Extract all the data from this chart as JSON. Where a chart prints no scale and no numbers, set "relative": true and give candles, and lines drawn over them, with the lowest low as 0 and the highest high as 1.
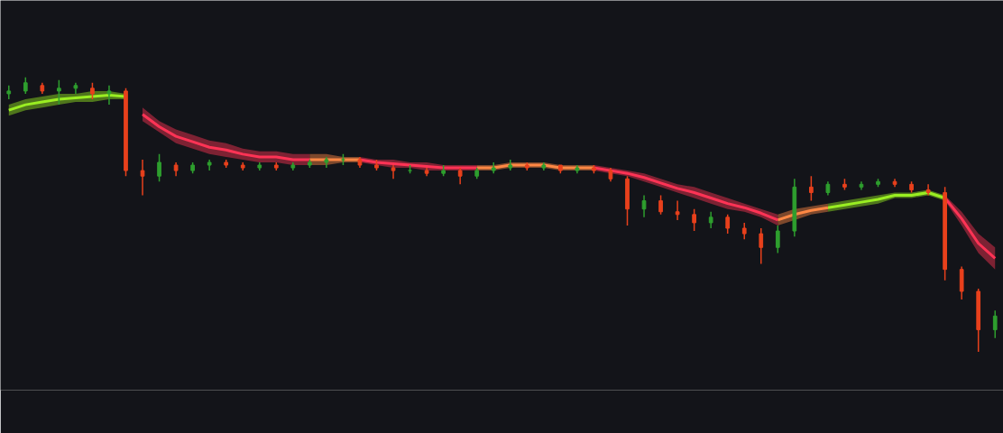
{
  "chart_data": {
    "type": "candlestick",
    "relative": true,
    "categories": [
      null,
      null,
      null,
      null,
      null,
      null,
      null,
      null,
      null,
      null,
      null,
      null,
      null,
      null,
      null,
      null,
      null,
      null,
      null,
      null,
      null,
      null,
      null,
      null,
      null,
      null,
      null,
      null,
      null,
      null,
      null,
      null,
      null,
      null,
      null,
      null,
      null,
      null,
      null,
      null,
      null,
      null,
      null,
      null,
      null,
      null,
      null,
      null,
      null,
      null,
      null,
      null,
      null,
      null,
      null,
      null,
      null,
      null,
      null,
      null
    ],
    "ohlc": [
      [
        0.94,
        0.97,
        0.92,
        0.95
      ],
      [
        0.95,
        1.0,
        0.94,
        0.98
      ],
      [
        0.97,
        0.98,
        0.94,
        0.95
      ],
      [
        0.95,
        0.99,
        0.9,
        0.96
      ],
      [
        0.96,
        0.98,
        0.94,
        0.97
      ],
      [
        0.96,
        0.98,
        0.92,
        0.94
      ],
      [
        0.94,
        0.97,
        0.9,
        0.95
      ],
      [
        0.95,
        0.96,
        0.64,
        0.66
      ],
      [
        0.66,
        0.7,
        0.57,
        0.64
      ],
      [
        0.64,
        0.72,
        0.62,
        0.69
      ],
      [
        0.68,
        0.69,
        0.64,
        0.66
      ],
      [
        0.66,
        0.69,
        0.65,
        0.68
      ],
      [
        0.68,
        0.7,
        0.66,
        0.69
      ],
      [
        0.69,
        0.7,
        0.67,
        0.68
      ],
      [
        0.68,
        0.69,
        0.66,
        0.67
      ],
      [
        0.67,
        0.69,
        0.66,
        0.68
      ],
      [
        0.68,
        0.69,
        0.66,
        0.67
      ],
      [
        0.67,
        0.69,
        0.66,
        0.68
      ],
      [
        0.68,
        0.7,
        0.67,
        0.69
      ],
      [
        0.69,
        0.71,
        0.67,
        0.7
      ],
      [
        0.7,
        0.72,
        0.68,
        0.7
      ],
      [
        0.7,
        0.71,
        0.67,
        0.68
      ],
      [
        0.68,
        0.7,
        0.66,
        0.67
      ],
      [
        0.67,
        0.68,
        0.63,
        0.66
      ],
      [
        0.66,
        0.68,
        0.65,
        0.66
      ],
      [
        0.66,
        0.67,
        0.64,
        0.65
      ],
      [
        0.65,
        0.68,
        0.64,
        0.66
      ],
      [
        0.66,
        0.67,
        0.61,
        0.64
      ],
      [
        0.64,
        0.67,
        0.63,
        0.66
      ],
      [
        0.66,
        0.69,
        0.65,
        0.67
      ],
      [
        0.67,
        0.7,
        0.66,
        0.68
      ],
      [
        0.68,
        0.69,
        0.66,
        0.67
      ],
      [
        0.67,
        0.69,
        0.66,
        0.68
      ],
      [
        0.68,
        0.68,
        0.65,
        0.66
      ],
      [
        0.66,
        0.68,
        0.65,
        0.67
      ],
      [
        0.67,
        0.68,
        0.65,
        0.66
      ],
      [
        0.66,
        0.67,
        0.62,
        0.63
      ],
      [
        0.63,
        0.64,
        0.46,
        0.52
      ],
      [
        0.52,
        0.57,
        0.49,
        0.55
      ],
      [
        0.55,
        0.57,
        0.5,
        0.51
      ],
      [
        0.51,
        0.55,
        0.48,
        0.5
      ],
      [
        0.5,
        0.52,
        0.44,
        0.47
      ],
      [
        0.47,
        0.51,
        0.45,
        0.49
      ],
      [
        0.49,
        0.5,
        0.43,
        0.45
      ],
      [
        0.45,
        0.47,
        0.41,
        0.43
      ],
      [
        0.43,
        0.45,
        0.32,
        0.38
      ],
      [
        0.38,
        0.46,
        0.36,
        0.44
      ],
      [
        0.44,
        0.63,
        0.42,
        0.6
      ],
      [
        0.6,
        0.64,
        0.55,
        0.58
      ],
      [
        0.58,
        0.62,
        0.57,
        0.61
      ],
      [
        0.61,
        0.63,
        0.59,
        0.6
      ],
      [
        0.6,
        0.62,
        0.59,
        0.61
      ],
      [
        0.61,
        0.63,
        0.6,
        0.62
      ],
      [
        0.62,
        0.63,
        0.6,
        0.61
      ],
      [
        0.61,
        0.62,
        0.58,
        0.59
      ],
      [
        0.59,
        0.61,
        0.57,
        0.58
      ],
      [
        0.58,
        0.6,
        0.26,
        0.3
      ],
      [
        0.3,
        0.31,
        0.19,
        0.22
      ],
      [
        0.22,
        0.23,
        0.0,
        0.08
      ],
      [
        0.08,
        0.15,
        0.05,
        0.13
      ]
    ],
    "series": [
      {
        "type": "line",
        "color": "#9aee22",
        "values": [
          0.88,
          0.9,
          0.91,
          0.92,
          0.925,
          0.93,
          0.935,
          0.93,
          null,
          null,
          null,
          null,
          null,
          null,
          null,
          null,
          null,
          null,
          null,
          null,
          null,
          null,
          null,
          null,
          null,
          null,
          null,
          null,
          null,
          null,
          null,
          null,
          null,
          null,
          null,
          null,
          null,
          null,
          null,
          null,
          null,
          null,
          null,
          null,
          null,
          null,
          null,
          null,
          null,
          0.525,
          0.535,
          0.545,
          0.555,
          0.57,
          0.57,
          0.58,
          0.56,
          null,
          null,
          null
        ],
        "lower": [
          0.86,
          0.88,
          0.89,
          0.9,
          0.91,
          0.91,
          0.92,
          0.92,
          null,
          null,
          null,
          null,
          null,
          null,
          null,
          null,
          null,
          null,
          null,
          null,
          null,
          null,
          null,
          null,
          null,
          null,
          null,
          null,
          null,
          null,
          null,
          null,
          null,
          null,
          null,
          null,
          null,
          null,
          null,
          null,
          null,
          null,
          null,
          null,
          null,
          null,
          null,
          null,
          null,
          0.51,
          0.52,
          0.53,
          0.54,
          0.56,
          0.56,
          0.57,
          0.55,
          null,
          null,
          null
        ],
        "upper": [
          0.9,
          0.92,
          0.93,
          0.94,
          0.94,
          0.95,
          0.95,
          0.94,
          null,
          null,
          null,
          null,
          null,
          null,
          null,
          null,
          null,
          null,
          null,
          null,
          null,
          null,
          null,
          null,
          null,
          null,
          null,
          null,
          null,
          null,
          null,
          null,
          null,
          null,
          null,
          null,
          null,
          null,
          null,
          null,
          null,
          null,
          null,
          null,
          null,
          null,
          null,
          null,
          null,
          0.54,
          0.55,
          0.56,
          0.57,
          0.58,
          0.58,
          0.59,
          0.57,
          null,
          null,
          null
        ]
      },
      {
        "type": "line",
        "color": "#ff8844",
        "values": [
          null,
          null,
          null,
          null,
          null,
          null,
          null,
          null,
          null,
          null,
          null,
          null,
          null,
          null,
          null,
          null,
          null,
          null,
          0.7,
          0.7,
          0.7,
          0.7,
          null,
          null,
          null,
          null,
          null,
          null,
          0.67,
          0.67,
          0.68,
          0.68,
          0.68,
          0.67,
          0.67,
          0.67,
          null,
          null,
          null,
          null,
          null,
          null,
          null,
          null,
          null,
          null,
          0.48,
          0.5,
          0.515,
          0.525,
          null,
          null,
          null,
          null,
          null,
          null,
          null,
          null,
          null,
          null
        ],
        "lower": [
          null,
          null,
          null,
          null,
          null,
          null,
          null,
          null,
          null,
          null,
          null,
          null,
          null,
          null,
          null,
          null,
          null,
          null,
          0.68,
          0.68,
          0.69,
          0.69,
          null,
          null,
          null,
          null,
          null,
          null,
          0.66,
          0.66,
          0.67,
          0.67,
          0.67,
          0.66,
          0.66,
          0.66,
          null,
          null,
          null,
          null,
          null,
          null,
          null,
          null,
          null,
          null,
          0.46,
          0.48,
          0.5,
          0.51,
          null,
          null,
          null,
          null,
          null,
          null,
          null,
          null,
          null,
          null
        ],
        "upper": [
          null,
          null,
          null,
          null,
          null,
          null,
          null,
          null,
          null,
          null,
          null,
          null,
          null,
          null,
          null,
          null,
          null,
          null,
          0.72,
          0.72,
          0.71,
          0.71,
          null,
          null,
          null,
          null,
          null,
          null,
          0.68,
          0.68,
          0.69,
          0.69,
          0.69,
          0.68,
          0.68,
          0.68,
          null,
          null,
          null,
          null,
          null,
          null,
          null,
          null,
          null,
          null,
          0.5,
          0.52,
          0.53,
          0.54,
          null,
          null,
          null,
          null,
          null,
          null,
          null,
          null,
          null,
          null
        ]
      },
      {
        "type": "line",
        "color": "#ff3355",
        "values": [
          null,
          null,
          null,
          null,
          null,
          null,
          null,
          null,
          0.865,
          0.82,
          0.785,
          0.765,
          0.745,
          0.735,
          0.72,
          0.71,
          0.71,
          0.7,
          0.7,
          null,
          null,
          0.7,
          0.69,
          0.685,
          0.68,
          0.675,
          0.67,
          0.67,
          0.67,
          null,
          null,
          null,
          null,
          null,
          null,
          0.67,
          0.66,
          0.65,
          0.635,
          0.615,
          0.595,
          0.58,
          0.56,
          0.54,
          0.525,
          0.505,
          0.48,
          null,
          null,
          null,
          null,
          null,
          null,
          null,
          null,
          null,
          0.56,
          0.485,
          0.395,
          0.34
        ],
        "lower": [
          null,
          null,
          null,
          null,
          null,
          null,
          null,
          null,
          0.84,
          0.8,
          0.76,
          0.74,
          0.72,
          0.71,
          0.7,
          0.69,
          0.69,
          0.68,
          0.68,
          null,
          null,
          0.69,
          0.68,
          0.67,
          0.67,
          0.66,
          0.66,
          0.66,
          0.66,
          null,
          null,
          null,
          null,
          null,
          null,
          0.66,
          0.65,
          0.64,
          0.62,
          0.6,
          0.58,
          0.56,
          0.54,
          0.52,
          0.51,
          0.49,
          0.46,
          null,
          null,
          null,
          null,
          null,
          null,
          null,
          null,
          null,
          0.55,
          0.46,
          0.36,
          0.3
        ],
        "upper": [
          null,
          null,
          null,
          null,
          null,
          null,
          null,
          null,
          0.89,
          0.84,
          0.81,
          0.79,
          0.77,
          0.76,
          0.74,
          0.73,
          0.73,
          0.72,
          0.72,
          null,
          null,
          0.71,
          0.7,
          0.7,
          0.69,
          0.69,
          0.68,
          0.68,
          0.68,
          null,
          null,
          null,
          null,
          null,
          null,
          0.68,
          0.67,
          0.66,
          0.65,
          0.63,
          0.61,
          0.6,
          0.58,
          0.56,
          0.54,
          0.52,
          0.5,
          null,
          null,
          null,
          null,
          null,
          null,
          null,
          null,
          null,
          0.57,
          0.51,
          0.43,
          0.38
        ]
      }
    ]
  }
}
